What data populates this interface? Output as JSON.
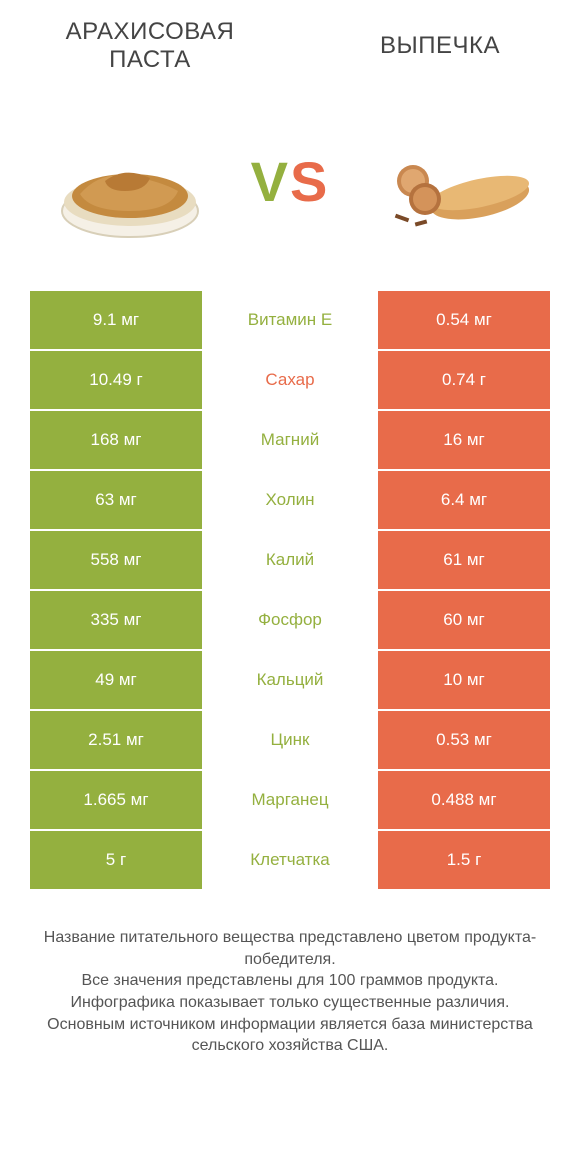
{
  "header": {
    "left_title": "АРАХИСОВАЯ ПАСТА",
    "right_title": "ВЫПЕЧКА",
    "vs_v": "V",
    "vs_s": "S"
  },
  "colors": {
    "left_bg": "#94b03f",
    "right_bg": "#e86b4a",
    "mid_text_default": "#888888",
    "title_text": "#444444",
    "footer_text": "#555555",
    "background": "#ffffff"
  },
  "table": {
    "left_cell_color": "#94b03f",
    "right_cell_color": "#e86b4a",
    "font_size": 17,
    "rows": [
      {
        "left": "9.1 мг",
        "label": "Витамин E",
        "right": "0.54 мг",
        "label_color": "#94b03f"
      },
      {
        "left": "10.49 г",
        "label": "Сахар",
        "right": "0.74 г",
        "label_color": "#e86b4a"
      },
      {
        "left": "168 мг",
        "label": "Магний",
        "right": "16 мг",
        "label_color": "#94b03f"
      },
      {
        "left": "63 мг",
        "label": "Холин",
        "right": "6.4 мг",
        "label_color": "#94b03f"
      },
      {
        "left": "558 мг",
        "label": "Калий",
        "right": "61 мг",
        "label_color": "#94b03f"
      },
      {
        "left": "335 мг",
        "label": "Фосфор",
        "right": "60 мг",
        "label_color": "#94b03f"
      },
      {
        "left": "49 мг",
        "label": "Кальций",
        "right": "10 мг",
        "label_color": "#94b03f"
      },
      {
        "left": "2.51 мг",
        "label": "Цинк",
        "right": "0.53 мг",
        "label_color": "#94b03f"
      },
      {
        "left": "1.665 мг",
        "label": "Марганец",
        "right": "0.488 мг",
        "label_color": "#94b03f"
      },
      {
        "left": "5 г",
        "label": "Клетчатка",
        "right": "1.5 г",
        "label_color": "#94b03f"
      }
    ]
  },
  "footer": {
    "line1": "Название питательного вещества представлено цветом продукта-победителя.",
    "line2": "Все значения представлены для 100 граммов продукта.",
    "line3": "Инфографика показывает только существенные различия.",
    "line4": "Основным источником информации является база министерства сельского хозяйства США."
  },
  "images": {
    "left_alt": "peanut-butter-bowl",
    "right_alt": "pastries"
  }
}
